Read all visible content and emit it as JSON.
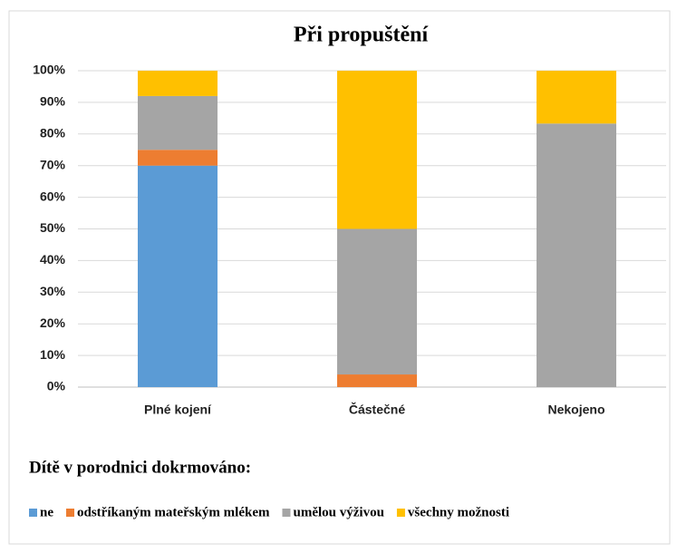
{
  "chart_data": {
    "type": "stacked_bar_percent",
    "title": "Při propuštění",
    "legend_title": "Dítě v porodnici dokrmováno:",
    "categories": [
      "Plné kojení",
      "Částečné",
      "Nekojeno"
    ],
    "series": [
      {
        "name": "ne",
        "color": "#5b9bd5",
        "values": [
          70,
          0,
          0
        ]
      },
      {
        "name": "odstříkaným mateřským mlékem",
        "color": "#ed7d31",
        "values": [
          5,
          4,
          0
        ]
      },
      {
        "name": "umělou výživou",
        "color": "#a5a5a5",
        "values": [
          17,
          46,
          83.3
        ]
      },
      {
        "name": "všechny možnosti",
        "color": "#ffc000",
        "values": [
          8,
          50,
          16.7
        ]
      }
    ],
    "ylim": [
      0,
      100
    ],
    "yticks": [
      {
        "value": 0,
        "label": "0%"
      },
      {
        "value": 10,
        "label": "10%"
      },
      {
        "value": 20,
        "label": "20%"
      },
      {
        "value": 30,
        "label": "30%"
      },
      {
        "value": 40,
        "label": "40%"
      },
      {
        "value": 50,
        "label": "50%"
      },
      {
        "value": 60,
        "label": "60%"
      },
      {
        "value": 70,
        "label": "70%"
      },
      {
        "value": 80,
        "label": "80%"
      },
      {
        "value": 90,
        "label": "90%"
      },
      {
        "value": 100,
        "label": "100%"
      }
    ],
    "grid": true,
    "legend": "bottom"
  }
}
